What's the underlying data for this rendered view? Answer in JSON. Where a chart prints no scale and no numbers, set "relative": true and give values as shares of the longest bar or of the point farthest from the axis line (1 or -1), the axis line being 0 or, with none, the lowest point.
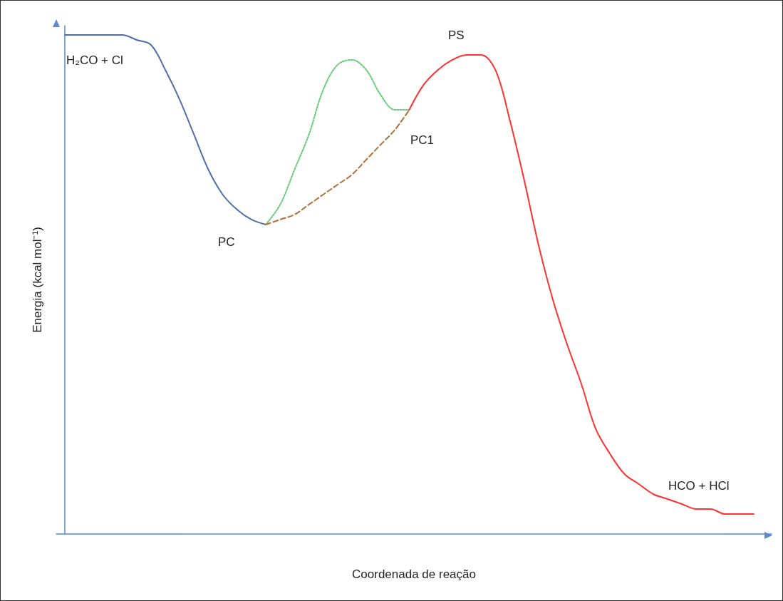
{
  "chart_data": {
    "type": "line",
    "relative": true,
    "xlabel": "Coordenada de reação",
    "ylabel": "Energia (kcal mol⁻¹)",
    "categories": [
      null,
      null,
      null,
      null,
      null,
      null,
      null,
      null,
      null,
      null,
      null,
      null,
      null,
      null,
      null,
      null,
      null,
      null,
      null,
      null,
      null,
      null,
      null,
      null,
      null,
      null,
      null,
      null,
      null,
      null,
      null,
      null,
      null,
      null,
      null,
      null,
      null,
      null,
      null,
      null,
      null,
      null,
      null,
      null,
      null,
      null,
      null,
      null,
      null
    ],
    "marker": "none",
    "grid": false,
    "series": [
      {
        "color": "#4f6fa8",
        "line_style": "solid",
        "values": [
          1.0,
          1.0,
          1.0,
          1.0,
          1.0,
          0.99,
          0.98,
          0.93,
          0.87,
          0.8,
          0.73,
          0.68,
          0.65,
          0.63,
          0.62,
          null,
          null,
          null,
          null,
          null,
          null,
          null,
          null,
          null,
          null,
          null,
          null,
          null,
          null,
          null,
          null,
          null,
          null,
          null,
          null,
          null,
          null,
          null,
          null,
          null,
          null,
          null,
          null,
          null,
          null,
          null,
          null,
          null,
          null
        ]
      },
      {
        "color": "#66cc77",
        "line_style": "dotted",
        "values": [
          null,
          null,
          null,
          null,
          null,
          null,
          null,
          null,
          null,
          null,
          null,
          null,
          null,
          null,
          0.62,
          0.66,
          0.73,
          0.8,
          0.89,
          0.94,
          0.95,
          0.93,
          0.88,
          0.85,
          0.85,
          null,
          null,
          null,
          null,
          null,
          null,
          null,
          null,
          null,
          null,
          null,
          null,
          null,
          null,
          null,
          null,
          null,
          null,
          null,
          null,
          null,
          null,
          null,
          null
        ]
      },
      {
        "color": "#b07038",
        "line_style": "dashed",
        "values": [
          null,
          null,
          null,
          null,
          null,
          null,
          null,
          null,
          null,
          null,
          null,
          null,
          null,
          null,
          0.62,
          0.63,
          0.64,
          0.66,
          0.68,
          0.7,
          0.72,
          0.75,
          0.78,
          0.81,
          0.85,
          null,
          null,
          null,
          null,
          null,
          null,
          null,
          null,
          null,
          null,
          null,
          null,
          null,
          null,
          null,
          null,
          null,
          null,
          null,
          null,
          null,
          null,
          null,
          null
        ]
      },
      {
        "color": "#ff3030",
        "line_style": "solid",
        "values": [
          null,
          null,
          null,
          null,
          null,
          null,
          null,
          null,
          null,
          null,
          null,
          null,
          null,
          null,
          null,
          null,
          null,
          null,
          null,
          null,
          null,
          null,
          null,
          null,
          0.85,
          0.9,
          0.93,
          0.95,
          0.96,
          0.96,
          0.93,
          0.83,
          0.71,
          0.58,
          0.47,
          0.38,
          0.3,
          0.21,
          0.16,
          0.12,
          0.1,
          0.08,
          0.07,
          0.06,
          0.05,
          0.05,
          0.04,
          0.04,
          0.04
        ]
      }
    ],
    "annotations": [
      "H₂CO + Cl",
      "PC",
      "PC1",
      "PS",
      "HCO + HCl"
    ]
  }
}
